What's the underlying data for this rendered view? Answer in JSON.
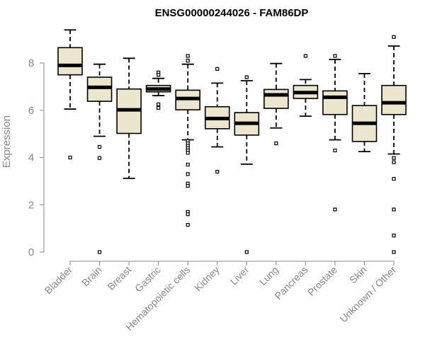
{
  "chart_data": {
    "type": "boxplot",
    "title": "ENSG00000244026 - FAM86DP",
    "ylabel": "Expression",
    "ylim": [
      0,
      9.5
    ],
    "yticks": [
      0,
      2,
      4,
      6,
      8
    ],
    "ytick_labels": [
      "0",
      "2",
      "4",
      "6",
      "8"
    ],
    "grid": false,
    "box_fill": "#ede6cf",
    "box_stroke": "#000000",
    "label_color": "#888888",
    "categories": [
      "Bladder",
      "Brain",
      "Breast",
      "Gastric",
      "Hematopoietic cells",
      "Kidney",
      "Liver",
      "Lung",
      "Pancreas",
      "Prostate",
      "Skin",
      "Unknown / Other"
    ],
    "boxes": [
      {
        "category": "Bladder",
        "whisker_low": 6.05,
        "q1": 7.5,
        "median": 7.9,
        "q3": 8.65,
        "whisker_high": 9.4,
        "outliers": [
          4.0
        ]
      },
      {
        "category": "Brain",
        "whisker_low": 4.9,
        "q1": 6.38,
        "median": 6.97,
        "q3": 7.4,
        "whisker_high": 7.95,
        "outliers": [
          4.45,
          3.98,
          0.0
        ]
      },
      {
        "category": "Breast",
        "whisker_low": 3.12,
        "q1": 5.02,
        "median": 6.02,
        "q3": 6.9,
        "whisker_high": 8.2,
        "outliers": []
      },
      {
        "category": "Gastric",
        "whisker_low": 6.62,
        "q1": 6.78,
        "median": 6.9,
        "q3": 7.05,
        "whisker_high": 7.35,
        "outliers": [
          7.6,
          7.5,
          6.25,
          6.1
        ]
      },
      {
        "category": "Hematopoietic cells",
        "whisker_low": 4.75,
        "q1": 6.02,
        "median": 6.5,
        "q3": 6.85,
        "whisker_high": 7.95,
        "outliers": [
          8.3,
          8.1,
          4.7,
          4.6,
          4.5,
          4.4,
          4.3,
          4.2,
          3.7,
          3.3,
          2.9,
          2.8,
          1.7,
          1.6,
          1.15
        ]
      },
      {
        "category": "Kidney",
        "whisker_low": 4.45,
        "q1": 5.22,
        "median": 5.65,
        "q3": 6.15,
        "whisker_high": 7.15,
        "outliers": [
          7.75,
          3.4
        ]
      },
      {
        "category": "Liver",
        "whisker_low": 3.72,
        "q1": 4.95,
        "median": 5.45,
        "q3": 5.9,
        "whisker_high": 7.25,
        "outliers": [
          7.4,
          0.0
        ]
      },
      {
        "category": "Lung",
        "whisker_low": 5.25,
        "q1": 6.08,
        "median": 6.65,
        "q3": 6.88,
        "whisker_high": 7.98,
        "outliers": [
          4.6
        ]
      },
      {
        "category": "Pancreas",
        "whisker_low": 5.75,
        "q1": 6.5,
        "median": 6.75,
        "q3": 7.05,
        "whisker_high": 7.3,
        "outliers": [
          8.3
        ]
      },
      {
        "category": "Prostate",
        "whisker_low": 4.75,
        "q1": 5.82,
        "median": 6.55,
        "q3": 6.82,
        "whisker_high": 8.15,
        "outliers": [
          8.3,
          4.3,
          1.8
        ]
      },
      {
        "category": "Skin",
        "whisker_low": 4.25,
        "q1": 4.68,
        "median": 5.45,
        "q3": 6.2,
        "whisker_high": 7.55,
        "outliers": []
      },
      {
        "category": "Unknown / Other",
        "whisker_low": 4.15,
        "q1": 5.82,
        "median": 6.32,
        "q3": 7.05,
        "whisker_high": 8.72,
        "outliers": [
          9.1,
          3.98,
          3.8,
          3.1,
          1.8,
          0.7,
          0.0
        ]
      }
    ]
  }
}
